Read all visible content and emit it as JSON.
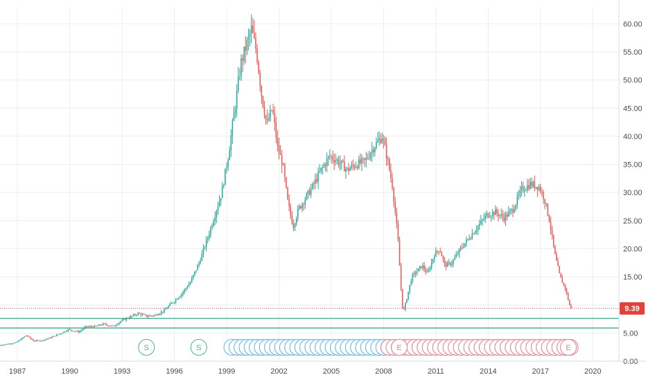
{
  "chart_data": {
    "type": "candlestick",
    "title": "",
    "xlabel": "",
    "ylabel": "",
    "x_ticks": [
      "1987",
      "1990",
      "1993",
      "1996",
      "1999",
      "2002",
      "2005",
      "2008",
      "2011",
      "2014",
      "2017",
      "2020"
    ],
    "y_ticks": [
      "0.00",
      "5.00",
      "10.00",
      "15.00",
      "20.00",
      "25.00",
      "30.00",
      "35.00",
      "40.00",
      "45.00",
      "50.00",
      "55.00",
      "60.00"
    ],
    "xlim": [
      1986.0,
      2021.5
    ],
    "ylim": [
      0,
      63
    ],
    "grid": true,
    "price_series": {
      "name": "",
      "points": [
        [
          1986.0,
          2.8
        ],
        [
          1987.0,
          3.3
        ],
        [
          1987.6,
          4.6
        ],
        [
          1988.0,
          3.6
        ],
        [
          1988.5,
          3.7
        ],
        [
          1989.0,
          4.2
        ],
        [
          1989.6,
          5.0
        ],
        [
          1990.0,
          5.6
        ],
        [
          1990.6,
          5.2
        ],
        [
          1991.0,
          6.1
        ],
        [
          1991.6,
          6.2
        ],
        [
          1992.0,
          6.6
        ],
        [
          1992.6,
          6.2
        ],
        [
          1993.0,
          7.1
        ],
        [
          1993.5,
          7.8
        ],
        [
          1994.0,
          8.5
        ],
        [
          1994.5,
          8.0
        ],
        [
          1995.0,
          8.2
        ],
        [
          1995.5,
          9.0
        ],
        [
          1996.0,
          10.5
        ],
        [
          1996.5,
          12.0
        ],
        [
          1997.0,
          14.0
        ],
        [
          1997.5,
          17.5
        ],
        [
          1998.0,
          22.0
        ],
        [
          1998.4,
          26.0
        ],
        [
          1998.8,
          30.0
        ],
        [
          1999.2,
          37.0
        ],
        [
          1999.6,
          46.0
        ],
        [
          1999.9,
          53.0
        ],
        [
          2000.2,
          56.0
        ],
        [
          2000.5,
          59.0
        ],
        [
          2000.8,
          55.0
        ],
        [
          2001.1,
          47.0
        ],
        [
          2001.4,
          42.0
        ],
        [
          2001.7,
          45.0
        ],
        [
          2002.0,
          38.0
        ],
        [
          2002.3,
          35.0
        ],
        [
          2002.6,
          28.0
        ],
        [
          2002.9,
          24.0
        ],
        [
          2003.2,
          27.0
        ],
        [
          2003.6,
          29.0
        ],
        [
          2004.0,
          31.0
        ],
        [
          2004.5,
          34.0
        ],
        [
          2005.0,
          36.5
        ],
        [
          2005.5,
          35.5
        ],
        [
          2006.0,
          34.0
        ],
        [
          2006.5,
          35.0
        ],
        [
          2007.0,
          35.5
        ],
        [
          2007.5,
          38.0
        ],
        [
          2008.0,
          40.0
        ],
        [
          2008.3,
          36.0
        ],
        [
          2008.6,
          31.0
        ],
        [
          2008.9,
          22.0
        ],
        [
          2009.1,
          12.0
        ],
        [
          2009.2,
          8.5
        ],
        [
          2009.4,
          11.0
        ],
        [
          2009.7,
          15.0
        ],
        [
          2010.0,
          16.0
        ],
        [
          2010.3,
          17.0
        ],
        [
          2010.6,
          15.5
        ],
        [
          2011.0,
          19.0
        ],
        [
          2011.3,
          20.0
        ],
        [
          2011.6,
          17.0
        ],
        [
          2012.0,
          17.5
        ],
        [
          2012.5,
          20.0
        ],
        [
          2013.0,
          22.0
        ],
        [
          2013.5,
          24.0
        ],
        [
          2014.0,
          26.0
        ],
        [
          2014.5,
          26.5
        ],
        [
          2015.0,
          25.5
        ],
        [
          2015.5,
          27.0
        ],
        [
          2016.0,
          30.5
        ],
        [
          2016.5,
          31.5
        ],
        [
          2017.0,
          31.0
        ],
        [
          2017.3,
          29.0
        ],
        [
          2017.6,
          25.0
        ],
        [
          2017.9,
          19.0
        ],
        [
          2018.2,
          15.0
        ],
        [
          2018.5,
          13.0
        ],
        [
          2018.8,
          9.39
        ]
      ]
    },
    "current_price_label": "9.39",
    "horizontal_levels": [
      7.6,
      5.9
    ],
    "level_line_start_year": 1986.0,
    "event_markers": [
      {
        "label": "S",
        "x": 1994.4,
        "color": "#4cb08a"
      },
      {
        "label": "S",
        "x": 1997.4,
        "color": "#4cb08a"
      },
      {
        "label": "E",
        "x": 2008.9,
        "color": "#e27f8e"
      },
      {
        "label": "E",
        "x": 2018.6,
        "color": "#e27f8e"
      }
    ],
    "dividend_markers": {
      "blue_start": 1999.3,
      "blue_end": 2008.3,
      "blue_count": 32,
      "blue_color": "#5fb4e8",
      "red_start": 2008.3,
      "red_end": 2018.7,
      "red_count": 36,
      "red_color": "#e27f8e"
    },
    "colors": {
      "up": "#26a69a",
      "down": "#ef5350",
      "grid": "#eceef2",
      "axis_text": "#4a4a4a",
      "level_line": "#3aa88a",
      "price_line": "#e0413a"
    }
  }
}
